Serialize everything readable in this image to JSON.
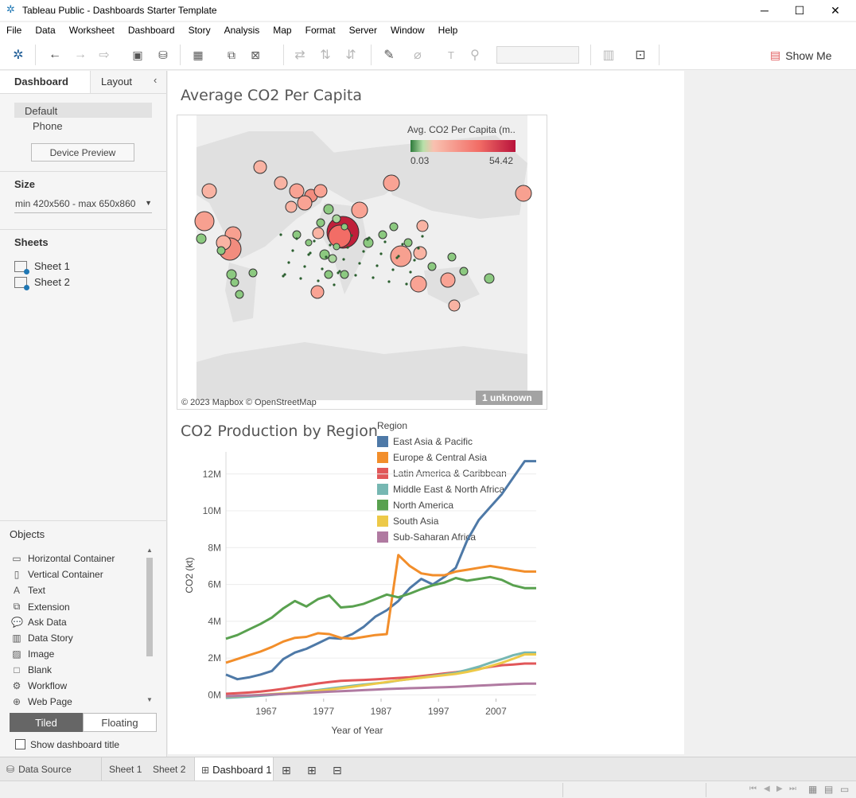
{
  "window": {
    "title": "Tableau Public - Dashboards Starter Template",
    "min": "─",
    "max": "☐",
    "close": "✕"
  },
  "menu": [
    "File",
    "Data",
    "Worksheet",
    "Dashboard",
    "Story",
    "Analysis",
    "Map",
    "Format",
    "Server",
    "Window",
    "Help"
  ],
  "toolbar": {
    "show_me": "Show Me"
  },
  "left": {
    "tab_dashboard": "Dashboard",
    "tab_layout": "Layout",
    "device_default": "Default",
    "device_phone": "Phone",
    "device_preview": "Device Preview",
    "size_title": "Size",
    "size_value": "min 420x560 - max 650x860",
    "sheets_title": "Sheets",
    "sheets": [
      "Sheet 1",
      "Sheet 2"
    ],
    "objects_title": "Objects",
    "objects": [
      {
        "label": "Horizontal Container",
        "icon": "horizontal-container-icon"
      },
      {
        "label": "Vertical Container",
        "icon": "vertical-container-icon"
      },
      {
        "label": "Text",
        "icon": "text-icon"
      },
      {
        "label": "Extension",
        "icon": "extension-icon"
      },
      {
        "label": "Ask Data",
        "icon": "ask-data-icon"
      },
      {
        "label": "Data Story",
        "icon": "data-story-icon"
      },
      {
        "label": "Image",
        "icon": "image-icon"
      },
      {
        "label": "Blank",
        "icon": "blank-icon"
      },
      {
        "label": "Workflow",
        "icon": "workflow-icon"
      },
      {
        "label": "Web Page",
        "icon": "web-page-icon"
      }
    ],
    "tiled": "Tiled",
    "floating": "Floating",
    "show_title": "Show dashboard title"
  },
  "map": {
    "title": "Average CO2 Per Capita",
    "legend_title": "Avg. CO2 Per Capita (m..",
    "legend_min": "0.03",
    "legend_max": "54.42",
    "attribution": "© 2023 Mapbox © OpenStreetMap",
    "unknown": "1 unknown"
  },
  "line": {
    "title": "CO2 Production by Region",
    "legend_title": "Region"
  },
  "chart_data": {
    "type": "line",
    "xlabel": "Year of Year",
    "ylabel": "CO2 (kt)",
    "x_ticks": [
      "1967",
      "1977",
      "1987",
      "1997",
      "2007"
    ],
    "y_ticks": [
      "0M",
      "2M",
      "4M",
      "6M",
      "8M",
      "10M",
      "12M"
    ],
    "xlim": [
      1960,
      2014
    ],
    "ylim": [
      -200000,
      13200000
    ],
    "grid": true,
    "legend": "top-right",
    "x": [
      1960,
      1962,
      1964,
      1966,
      1968,
      1970,
      1972,
      1974,
      1976,
      1978,
      1980,
      1982,
      1984,
      1986,
      1988,
      1990,
      1992,
      1994,
      1996,
      1998,
      2000,
      2002,
      2004,
      2006,
      2008,
      2010,
      2012,
      2014
    ],
    "series": [
      {
        "name": "East Asia & Pacific",
        "color": "#4e79a7",
        "values": [
          1100000,
          850000,
          950000,
          1100000,
          1300000,
          1950000,
          2300000,
          2500000,
          2800000,
          3100000,
          3050000,
          3300000,
          3700000,
          4250000,
          4600000,
          5100000,
          5800000,
          6300000,
          6000000,
          6400000,
          6900000,
          8400000,
          9500000,
          10200000,
          10900000,
          11800000,
          12700000,
          12700000
        ]
      },
      {
        "name": "Europe & Central Asia",
        "color": "#f28e2b",
        "values": [
          1750000,
          1950000,
          2150000,
          2350000,
          2600000,
          2900000,
          3100000,
          3150000,
          3350000,
          3300000,
          3100000,
          3050000,
          3150000,
          3250000,
          3300000,
          7600000,
          7000000,
          6600000,
          6500000,
          6500000,
          6700000,
          6800000,
          6900000,
          7000000,
          6900000,
          6800000,
          6700000,
          6700000
        ]
      },
      {
        "name": "Latin America & Caribbean",
        "color": "#e15759",
        "values": [
          60000,
          90000,
          130000,
          180000,
          250000,
          330000,
          430000,
          520000,
          620000,
          700000,
          760000,
          790000,
          810000,
          840000,
          880000,
          920000,
          960000,
          1020000,
          1090000,
          1160000,
          1230000,
          1320000,
          1410000,
          1520000,
          1610000,
          1650000,
          1700000,
          1700000
        ]
      },
      {
        "name": "Middle East & North Africa",
        "color": "#76b7b2",
        "values": [
          -160000,
          -130000,
          -90000,
          -50000,
          0,
          60000,
          120000,
          190000,
          260000,
          340000,
          420000,
          490000,
          560000,
          620000,
          680000,
          780000,
          860000,
          940000,
          1020000,
          1110000,
          1200000,
          1360000,
          1530000,
          1740000,
          1940000,
          2150000,
          2300000,
          2300000
        ]
      },
      {
        "name": "North America",
        "color": "#59a14f",
        "values": [
          3050000,
          3250000,
          3550000,
          3850000,
          4200000,
          4700000,
          5100000,
          4800000,
          5200000,
          5400000,
          4750000,
          4800000,
          4950000,
          5200000,
          5450000,
          5300000,
          5500000,
          5750000,
          5950000,
          6100000,
          6350000,
          6200000,
          6300000,
          6400000,
          6250000,
          5950000,
          5800000,
          5800000
        ]
      },
      {
        "name": "South Asia",
        "color": "#edc948",
        "values": [
          -80000,
          -60000,
          -30000,
          0,
          40000,
          80000,
          120000,
          160000,
          220000,
          280000,
          360000,
          440000,
          520000,
          610000,
          700000,
          780000,
          860000,
          930000,
          1000000,
          1070000,
          1140000,
          1250000,
          1380000,
          1560000,
          1740000,
          1960000,
          2200000,
          2200000
        ]
      },
      {
        "name": "Sub-Saharan Africa",
        "color": "#b07aa1",
        "values": [
          -70000,
          -50000,
          -30000,
          -10000,
          20000,
          50000,
          80000,
          110000,
          140000,
          170000,
          200000,
          230000,
          260000,
          290000,
          320000,
          340000,
          360000,
          380000,
          400000,
          420000,
          440000,
          470000,
          500000,
          530000,
          560000,
          590000,
          610000,
          610000
        ]
      }
    ]
  },
  "bottom": {
    "data_source": "Data Source",
    "tabs": [
      "Sheet 1",
      "Sheet 2",
      "Dashboard 1"
    ]
  }
}
